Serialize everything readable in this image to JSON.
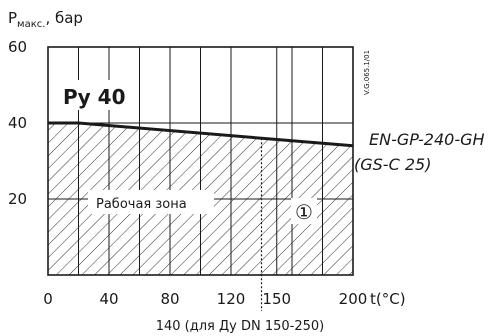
{
  "chart_data": {
    "type": "area",
    "y_axis_label_main": "P",
    "y_axis_label_sub": "макс.",
    "y_axis_label_unit": ", бар",
    "x_axis_label": "t(°C)",
    "xlim": [
      0,
      200
    ],
    "ylim": [
      0,
      60
    ],
    "x_major_ticks": [
      0,
      40,
      80,
      120,
      150,
      200
    ],
    "x_minor_grid": [
      20,
      60,
      100,
      140,
      160,
      180
    ],
    "y_ticks": [
      20,
      40,
      60
    ],
    "grid": true,
    "series": [
      {
        "name": "EN-GP-240-GH",
        "name_line2": "(GS-C 25)",
        "x": [
          0,
          20,
          200
        ],
        "y": [
          40,
          40,
          34
        ]
      }
    ],
    "pn_label": "Ру 40",
    "zone_label": "Рабочая зона",
    "zone_marker": "①",
    "limit_line_x": 140,
    "limit_line_label": "140 (для Ду DN 150-250)",
    "doc_code": "V.G.065.1/01",
    "hatch_color": "#1a1a1a",
    "line_color": "#1a1a1a"
  }
}
